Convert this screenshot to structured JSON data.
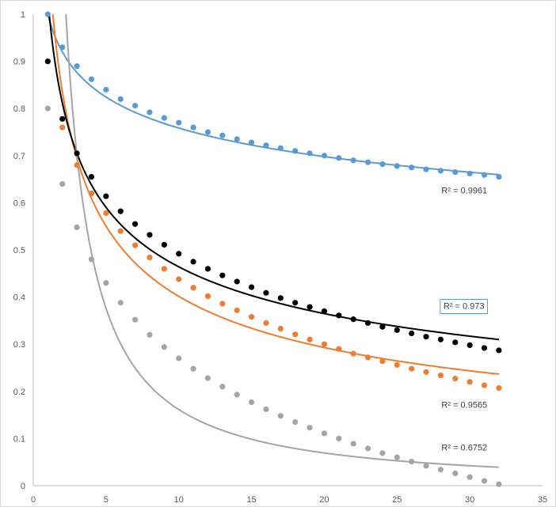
{
  "chart_data": {
    "type": "scatter",
    "title": "",
    "xlabel": "",
    "ylabel": "",
    "xlim": [
      0,
      35
    ],
    "ylim": [
      0,
      1
    ],
    "x_ticks": [
      "0",
      "5",
      "10",
      "15",
      "20",
      "25",
      "30",
      "35"
    ],
    "y_ticks": [
      "0",
      "0.1",
      "0.2",
      "0.3",
      "0.4",
      "0.5",
      "0.6",
      "0.7",
      "0.8",
      "0.9",
      "1"
    ],
    "grid": false,
    "legend": "none",
    "x": [
      1,
      2,
      3,
      4,
      5,
      6,
      7,
      8,
      9,
      10,
      11,
      12,
      13,
      14,
      15,
      16,
      17,
      18,
      19,
      20,
      21,
      22,
      23,
      24,
      25,
      26,
      27,
      28,
      29,
      30,
      31,
      32
    ],
    "series": [
      {
        "name": "blue",
        "color": "#5b9bd5",
        "values": [
          1.0,
          0.93,
          0.89,
          0.862,
          0.84,
          0.82,
          0.806,
          0.792,
          0.78,
          0.77,
          0.76,
          0.75,
          0.743,
          0.735,
          0.728,
          0.722,
          0.716,
          0.71,
          0.705,
          0.7,
          0.695,
          0.69,
          0.686,
          0.682,
          0.678,
          0.675,
          0.671,
          0.668,
          0.665,
          0.662,
          0.659,
          0.655
        ],
        "trendline": {
          "type": "power",
          "a": 1.0,
          "b": -0.12
        },
        "r2_label": "R² = 0.9961",
        "r2_at": [
          31.2,
          0.62
        ],
        "boxed": false
      },
      {
        "name": "orange",
        "color": "#ed7d31",
        "values": [
          null,
          0.76,
          0.68,
          0.62,
          0.578,
          0.54,
          0.51,
          0.484,
          0.46,
          0.438,
          0.42,
          0.402,
          0.386,
          0.372,
          0.358,
          0.345,
          0.333,
          0.321,
          0.31,
          0.3,
          0.29,
          0.28,
          0.272,
          0.264,
          0.256,
          0.248,
          0.241,
          0.234,
          0.227,
          0.22,
          0.213,
          0.207
        ],
        "trendline": {
          "type": "power",
          "a": 1.145,
          "b": -0.455
        },
        "r2_label": "R² = 0.9565",
        "r2_at": [
          31.2,
          0.165
        ],
        "boxed": false
      },
      {
        "name": "black",
        "color": "#000000",
        "values": [
          0.9,
          0.778,
          0.705,
          0.655,
          0.614,
          0.582,
          0.555,
          0.532,
          0.511,
          0.492,
          0.475,
          0.46,
          0.446,
          0.433,
          0.421,
          0.409,
          0.398,
          0.388,
          0.379,
          0.37,
          0.361,
          0.353,
          0.345,
          0.337,
          0.33,
          0.323,
          0.316,
          0.31,
          0.304,
          0.298,
          0.292,
          0.287
        ],
        "trendline": {
          "type": "power",
          "a": 1.032,
          "b": -0.347
        },
        "r2_label": "R² = 0.973",
        "r2_at": [
          31.0,
          0.375
        ],
        "boxed": true
      },
      {
        "name": "gray",
        "color": "#a5a5a5",
        "values": [
          0.8,
          0.64,
          0.548,
          0.48,
          0.43,
          0.388,
          0.352,
          0.32,
          0.294,
          0.27,
          0.248,
          0.228,
          0.21,
          0.193,
          0.177,
          0.162,
          0.148,
          0.135,
          0.123,
          0.111,
          0.1,
          0.089,
          0.079,
          0.069,
          0.06,
          0.051,
          0.042,
          0.034,
          0.026,
          0.018,
          0.01,
          0.003
        ],
        "trendline": {
          "type": "power",
          "a": 2.68,
          "b": -1.22
        },
        "r2_label": "R² = 0.6752",
        "r2_at": [
          31.2,
          0.075
        ],
        "boxed": false
      }
    ]
  }
}
